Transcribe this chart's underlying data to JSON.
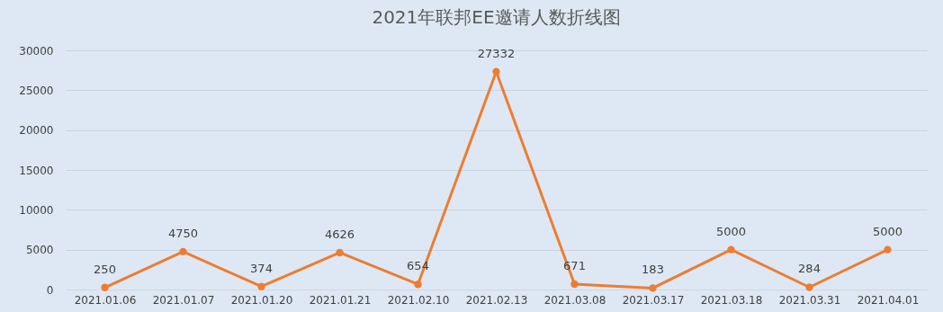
{
  "chart_data": {
    "type": "line",
    "title": "2021年联邦EE邀请人数折线图",
    "categories": [
      "2021.01.06",
      "2021.01.07",
      "2021.01.20",
      "2021.01.21",
      "2021.02.10",
      "2021.02.13",
      "2021.03.08",
      "2021.03.17",
      "2021.03.18",
      "2021.03.31",
      "2021.04.01"
    ],
    "series": [
      {
        "color": "#ed7d31",
        "values": [
          250,
          4750,
          374,
          4626,
          654,
          27332,
          671,
          183,
          5000,
          284,
          5000
        ]
      }
    ],
    "ylim": [
      0,
      30000
    ],
    "yticks": [
      0,
      5000,
      10000,
      15000,
      20000,
      25000,
      30000
    ],
    "grid": "y",
    "marker": "circle",
    "line_style": "solid",
    "data_labels": true
  }
}
